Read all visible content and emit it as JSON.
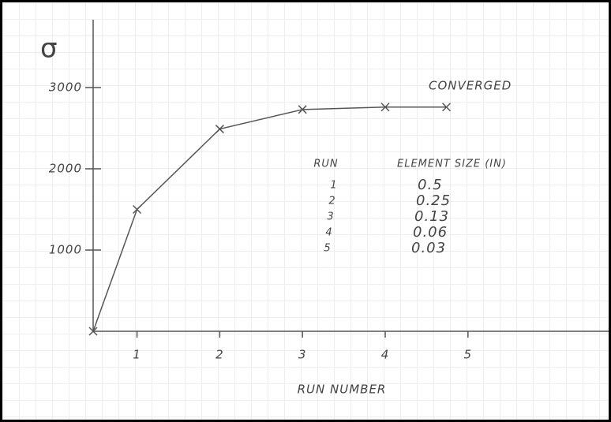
{
  "chart_data": {
    "type": "line",
    "y_label": "σ",
    "x_label": "RUN NUMBER",
    "annotation": "CONVERGED",
    "x": [
      0.47,
      1,
      2,
      3,
      4,
      4.74
    ],
    "series": [
      {
        "color": "#555555",
        "values": [
          0,
          1500,
          2490,
          2730,
          2760,
          2760
        ]
      }
    ],
    "xlim": [
      0.47,
      6.7
    ],
    "ylim": [
      0,
      3835
    ],
    "xticks": [
      1,
      2,
      3,
      4,
      5
    ],
    "yticks": [
      1000,
      2000,
      3000
    ],
    "table": {
      "columns": [
        "RUN",
        "ELEMENT SIZE (IN)"
      ],
      "rows": [
        [
          1,
          0.5
        ],
        [
          2,
          0.25
        ],
        [
          3,
          0.13
        ],
        [
          4,
          0.06
        ],
        [
          5,
          0.03
        ]
      ]
    }
  }
}
